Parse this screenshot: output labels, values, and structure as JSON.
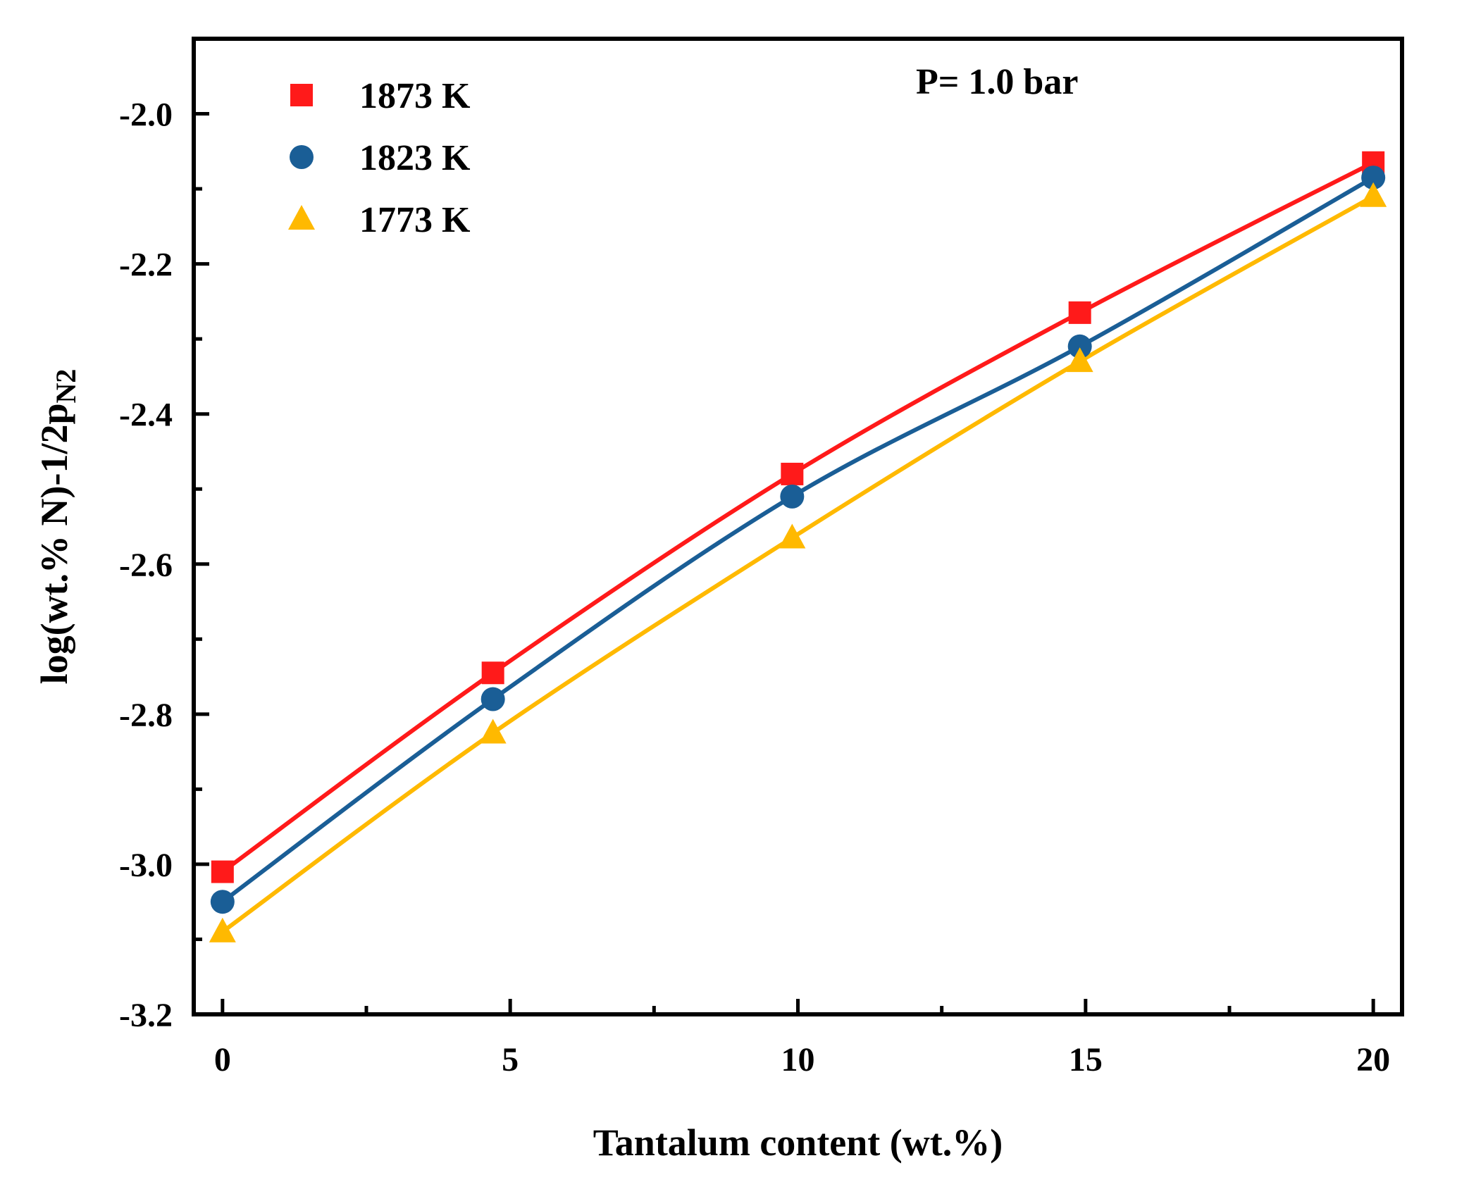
{
  "chart_data": {
    "type": "line",
    "xlabel": "Tantalum content (wt.%)",
    "ylabel": {
      "main": "log(wt.% N)-1/2p",
      "subscript": "N2"
    },
    "annotation": "P= 1.0 bar",
    "xlim": [
      -0.5,
      20.5
    ],
    "ylim": [
      -3.2,
      -1.9
    ],
    "x_major_ticks": [
      0,
      5,
      10,
      15,
      20
    ],
    "x_tick_labels": [
      "0",
      "5",
      "10",
      "15",
      "20"
    ],
    "x_minor_ticks": [
      2.5,
      7.5,
      12.5,
      17.5
    ],
    "y_major_ticks": [
      -2.0,
      -2.2,
      -2.4,
      -2.6,
      -2.8,
      -3.0,
      -3.2
    ],
    "y_tick_labels": [
      "-2.0",
      "-2.2",
      "-2.4",
      "-2.6",
      "-2.8",
      "-3.0",
      "-3.2"
    ],
    "y_minor_ticks": [
      -2.1,
      -2.3,
      -2.5,
      -2.7,
      -2.9,
      -3.1
    ],
    "legend_position": "top-left",
    "series": [
      {
        "name": "1873 K",
        "marker": "square",
        "color": "#ff1a1a",
        "x": [
          0,
          4.7,
          9.9,
          14.9,
          20
        ],
        "y": [
          -3.01,
          -2.745,
          -2.48,
          -2.265,
          -2.065
        ]
      },
      {
        "name": "1823 K",
        "marker": "circle",
        "color": "#1a5e96",
        "x": [
          0,
          4.7,
          9.9,
          14.9,
          20
        ],
        "y": [
          -3.05,
          -2.78,
          -2.51,
          -2.31,
          -2.085
        ]
      },
      {
        "name": "1773 K",
        "marker": "triangle",
        "color": "#ffb900",
        "x": [
          0,
          4.7,
          9.9,
          14.9,
          20
        ],
        "y": [
          -3.09,
          -2.825,
          -2.565,
          -2.33,
          -2.11
        ]
      }
    ]
  }
}
